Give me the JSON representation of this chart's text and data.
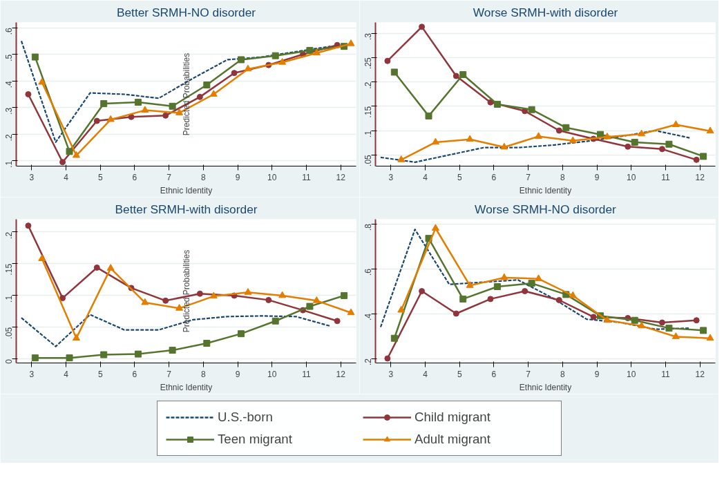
{
  "chart_data": [
    {
      "type": "line",
      "title": "Better SRMH-NO disorder",
      "xlabel": "Ethnic Identity",
      "legend": "bottom",
      "annotations": [
        "Predicted Probabilities"
      ],
      "xlim": [
        2.55,
        12.45
      ],
      "xticks": [
        3,
        4,
        5,
        6,
        7,
        8,
        9,
        10,
        11,
        12
      ],
      "ylim": [
        0.08,
        0.62
      ],
      "yticks": [
        {
          "value": 0.1,
          "label": ".1"
        },
        {
          "value": 0.2,
          "label": ".2"
        },
        {
          "value": 0.3,
          "label": ".3"
        },
        {
          "value": 0.4,
          "label": ".4"
        },
        {
          "value": 0.5,
          "label": ".5"
        },
        {
          "value": 0.6,
          "label": ".6"
        }
      ],
      "grid": "y",
      "series": [
        {
          "name": "U.S.-born",
          "color": "#1a476f",
          "line_style": "dashed",
          "marker": "none",
          "x": [
            2.7,
            3.7,
            4.7,
            5.7,
            6.7,
            7.7,
            8.7,
            9.7,
            10.7,
            11.7
          ],
          "values": [
            0.55,
            0.17,
            0.355,
            0.35,
            0.335,
            0.41,
            0.48,
            0.49,
            0.51,
            0.53
          ]
        },
        {
          "name": "Child migrant",
          "color": "#90353b",
          "line_style": "solid",
          "marker": "circle",
          "x": [
            2.9,
            3.9,
            4.9,
            5.9,
            6.9,
            7.9,
            8.9,
            9.9,
            10.9,
            11.9
          ],
          "values": [
            0.35,
            0.095,
            0.25,
            0.265,
            0.27,
            0.34,
            0.43,
            0.46,
            0.5,
            0.535
          ]
        },
        {
          "name": "Teen migrant",
          "color": "#55752f",
          "line_style": "solid",
          "marker": "square",
          "x": [
            3.1,
            4.1,
            5.1,
            6.1,
            7.1,
            8.1,
            9.1,
            10.1,
            11.1,
            12.1
          ],
          "values": [
            0.49,
            0.135,
            0.315,
            0.32,
            0.305,
            0.385,
            0.48,
            0.495,
            0.515,
            0.53
          ]
        },
        {
          "name": "Adult migrant",
          "color": "#e37e00",
          "line_style": "solid",
          "marker": "triangle",
          "x": [
            3.3,
            4.3,
            5.3,
            6.3,
            7.3,
            8.3,
            9.3,
            10.3,
            11.3,
            12.3
          ],
          "values": [
            0.395,
            0.12,
            0.255,
            0.29,
            0.28,
            0.35,
            0.445,
            0.47,
            0.505,
            0.54
          ]
        }
      ]
    },
    {
      "type": "line",
      "title": "Worse SRMH-with disorder",
      "xlabel": "Ethnic Identity",
      "xlim": [
        2.55,
        12.45
      ],
      "xticks": [
        3,
        4,
        5,
        6,
        7,
        8,
        9,
        10,
        11,
        12
      ],
      "ylim": [
        0.027,
        0.322
      ],
      "yticks": [
        {
          "value": 0.05,
          "label": ".05"
        },
        {
          "value": 0.1,
          "label": ".1"
        },
        {
          "value": 0.15,
          "label": ".15"
        },
        {
          "value": 0.2,
          "label": ".2"
        },
        {
          "value": 0.25,
          "label": ".25"
        },
        {
          "value": 0.3,
          "label": ".3"
        }
      ],
      "grid": "y",
      "series": [
        {
          "color": "#1a476f",
          "line_style": "dashed",
          "marker": "none",
          "x": [
            2.7,
            3.7,
            4.7,
            5.7,
            6.7,
            7.7,
            8.7,
            9.7,
            10.7,
            11.7
          ],
          "values": [
            0.045,
            0.035,
            0.05,
            0.065,
            0.065,
            0.07,
            0.078,
            0.088,
            0.1,
            0.085
          ]
        },
        {
          "color": "#90353b",
          "line_style": "solid",
          "marker": "circle",
          "x": [
            2.9,
            3.9,
            4.9,
            5.9,
            6.9,
            7.9,
            8.9,
            9.9,
            10.9,
            11.9
          ],
          "values": [
            0.243,
            0.313,
            0.212,
            0.158,
            0.14,
            0.1,
            0.083,
            0.067,
            0.062,
            0.04
          ]
        },
        {
          "color": "#55752f",
          "line_style": "solid",
          "marker": "square",
          "x": [
            3.1,
            4.1,
            5.1,
            6.1,
            7.1,
            8.1,
            9.1,
            10.1,
            11.1,
            12.1
          ],
          "values": [
            0.22,
            0.13,
            0.215,
            0.154,
            0.143,
            0.106,
            0.092,
            0.076,
            0.072,
            0.047
          ]
        },
        {
          "color": "#e37e00",
          "line_style": "solid",
          "marker": "triangle",
          "x": [
            3.3,
            4.3,
            5.3,
            6.3,
            7.3,
            8.3,
            9.3,
            10.3,
            11.3,
            12.3
          ],
          "values": [
            0.04,
            0.076,
            0.082,
            0.066,
            0.088,
            0.079,
            0.087,
            0.093,
            0.112,
            0.099
          ]
        }
      ]
    },
    {
      "type": "line",
      "title": "Better SRMH-with disorder",
      "xlabel": "Ethnic Identity",
      "annotations": [
        "Predicted Probabilities"
      ],
      "xlim": [
        2.55,
        12.45
      ],
      "xticks": [
        3,
        4,
        5,
        6,
        7,
        8,
        9,
        10,
        11,
        12
      ],
      "ylim": [
        -0.006,
        0.22
      ],
      "yticks": [
        0,
        {
          "value": 0.05,
          "label": ".05"
        },
        {
          "value": 0.1,
          "label": ".1"
        },
        {
          "value": 0.15,
          "label": ".15"
        },
        {
          "value": 0.2,
          "label": ".2"
        }
      ],
      "grid": "y",
      "series": [
        {
          "color": "#1a476f",
          "line_style": "dashed",
          "marker": "none",
          "x": [
            2.7,
            3.7,
            4.7,
            5.7,
            6.7,
            7.7,
            8.7,
            9.7,
            10.7,
            11.7
          ],
          "values": [
            0.065,
            0.02,
            0.07,
            0.046,
            0.046,
            0.062,
            0.067,
            0.068,
            0.067,
            0.052
          ]
        },
        {
          "color": "#90353b",
          "line_style": "solid",
          "marker": "circle",
          "x": [
            2.9,
            3.9,
            4.9,
            5.9,
            6.9,
            7.9,
            8.9,
            9.9,
            10.9,
            11.9
          ],
          "values": [
            0.21,
            0.096,
            0.144,
            0.112,
            0.092,
            0.103,
            0.1,
            0.093,
            0.077,
            0.06
          ]
        },
        {
          "color": "#55752f",
          "line_style": "solid",
          "marker": "square",
          "x": [
            3.1,
            4.1,
            5.1,
            6.1,
            7.1,
            8.1,
            9.1,
            10.1,
            11.1,
            12.1
          ],
          "values": [
            0.002,
            0.002,
            0.007,
            0.008,
            0.014,
            0.025,
            0.04,
            0.06,
            0.083,
            0.1
          ]
        },
        {
          "color": "#e37e00",
          "line_style": "solid",
          "marker": "triangle",
          "x": [
            3.3,
            4.3,
            5.3,
            6.3,
            7.3,
            8.3,
            9.3,
            10.3,
            11.3,
            12.3
          ],
          "values": [
            0.158,
            0.033,
            0.143,
            0.089,
            0.08,
            0.099,
            0.105,
            0.1,
            0.092,
            0.073
          ]
        }
      ]
    },
    {
      "type": "line",
      "title": "Worse SRMH-NO disorder",
      "xlabel": "Ethnic Identity",
      "xlim": [
        2.55,
        12.45
      ],
      "xticks": [
        3,
        4,
        5,
        6,
        7,
        8,
        9,
        10,
        11,
        12
      ],
      "ylim": [
        0.18,
        0.82
      ],
      "yticks": [
        {
          "value": 0.2,
          "label": ".2"
        },
        {
          "value": 0.4,
          "label": ".4"
        },
        {
          "value": 0.6,
          "label": ".6"
        },
        {
          "value": 0.8,
          "label": ".8"
        }
      ],
      "grid": "y",
      "series": [
        {
          "color": "#1a476f",
          "line_style": "dashed",
          "marker": "none",
          "x": [
            2.7,
            3.7,
            4.7,
            5.7,
            6.7,
            7.7,
            8.7,
            9.7,
            10.7,
            11.7
          ],
          "values": [
            0.34,
            0.775,
            0.53,
            0.54,
            0.55,
            0.47,
            0.375,
            0.36,
            0.33,
            0.335
          ]
        },
        {
          "color": "#90353b",
          "line_style": "solid",
          "marker": "circle",
          "x": [
            2.9,
            3.9,
            4.9,
            5.9,
            6.9,
            7.9,
            8.9,
            9.9,
            10.9,
            11.9
          ],
          "values": [
            0.2,
            0.5,
            0.4,
            0.465,
            0.5,
            0.46,
            0.385,
            0.38,
            0.36,
            0.37
          ]
        },
        {
          "color": "#55752f",
          "line_style": "solid",
          "marker": "square",
          "x": [
            3.1,
            4.1,
            5.1,
            6.1,
            7.1,
            8.1,
            9.1,
            10.1,
            11.1,
            12.1
          ],
          "values": [
            0.29,
            0.735,
            0.465,
            0.52,
            0.535,
            0.485,
            0.39,
            0.37,
            0.335,
            0.325
          ]
        },
        {
          "color": "#e37e00",
          "line_style": "solid",
          "marker": "triangle",
          "x": [
            3.3,
            4.3,
            5.3,
            6.3,
            7.3,
            8.3,
            9.3,
            10.3,
            11.3,
            12.3
          ],
          "values": [
            0.415,
            0.78,
            0.525,
            0.56,
            0.555,
            0.48,
            0.37,
            0.345,
            0.297,
            0.29
          ]
        }
      ]
    }
  ]
}
